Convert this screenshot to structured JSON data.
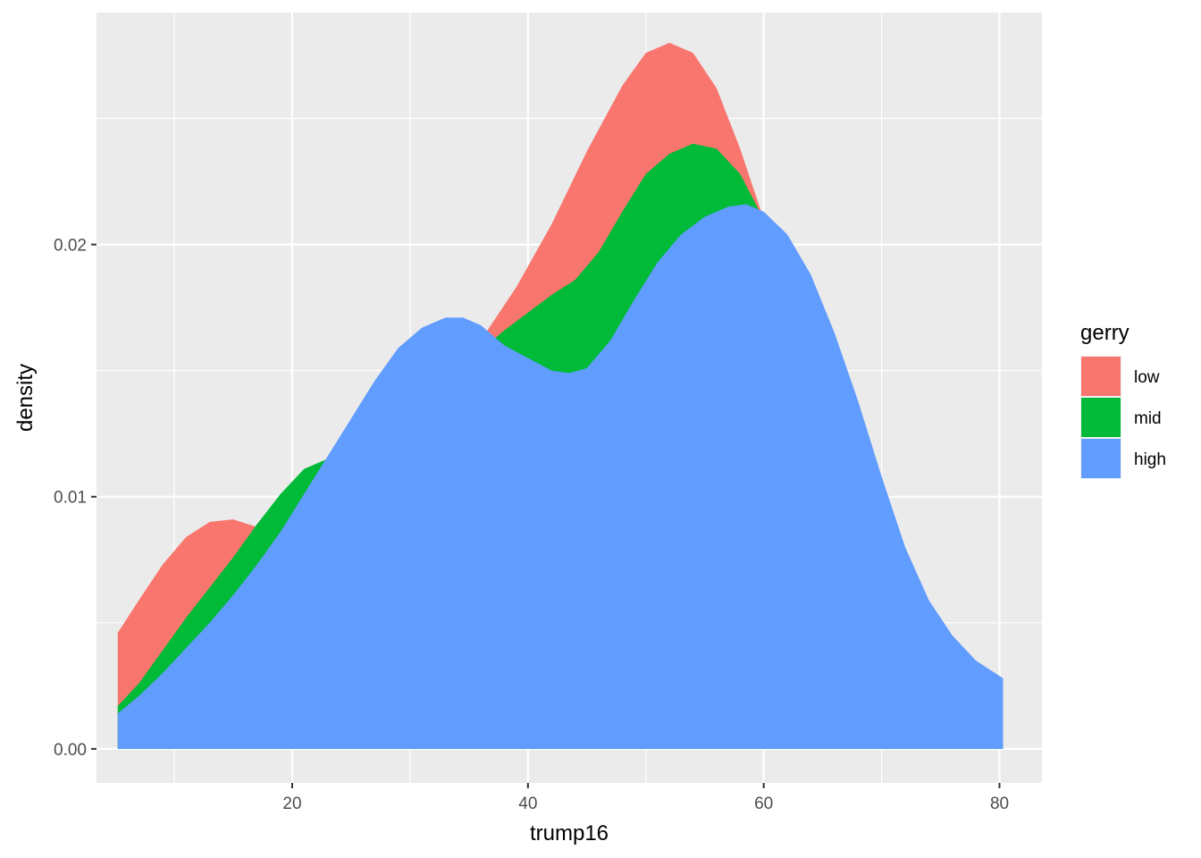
{
  "chart_data": {
    "type": "area",
    "xlabel": "trump16",
    "ylabel": "density",
    "xlim": [
      3.4,
      83.6
    ],
    "ylim": [
      -0.00135,
      0.0292
    ],
    "x_ticks": [
      20,
      40,
      60,
      80
    ],
    "x_tick_labels": [
      "20",
      "40",
      "60",
      "80"
    ],
    "y_ticks": [
      0.0,
      0.01,
      0.02
    ],
    "y_tick_labels": [
      "0.00",
      "0.01",
      "0.02"
    ],
    "x_minor_grid": [
      10,
      30,
      50,
      70
    ],
    "y_minor_grid": [
      0.005,
      0.015,
      0.025
    ],
    "grid": true,
    "legend_title": "gerry",
    "legend_position": "right",
    "series": [
      {
        "name": "low",
        "color": "#F8766D",
        "points": [
          [
            5.2,
            0.0046
          ],
          [
            7,
            0.0059
          ],
          [
            9,
            0.0073
          ],
          [
            11,
            0.0084
          ],
          [
            13,
            0.009
          ],
          [
            15,
            0.0091
          ],
          [
            17,
            0.0088
          ],
          [
            19,
            0.0083
          ],
          [
            21,
            0.0078
          ],
          [
            24,
            0.0085
          ],
          [
            27,
            0.0103
          ],
          [
            30,
            0.0125
          ],
          [
            33,
            0.0143
          ],
          [
            36,
            0.0162
          ],
          [
            39,
            0.0183
          ],
          [
            42,
            0.0208
          ],
          [
            45,
            0.0237
          ],
          [
            48,
            0.0263
          ],
          [
            50,
            0.0276
          ],
          [
            52,
            0.028
          ],
          [
            54,
            0.0276
          ],
          [
            56,
            0.0262
          ],
          [
            58,
            0.0238
          ],
          [
            60,
            0.021
          ],
          [
            62,
            0.018
          ],
          [
            64,
            0.015
          ],
          [
            66,
            0.0124
          ],
          [
            68,
            0.0098
          ],
          [
            70,
            0.0073
          ],
          [
            72,
            0.0054
          ],
          [
            74,
            0.0038
          ],
          [
            76,
            0.0026
          ],
          [
            78,
            0.0018
          ],
          [
            80.3,
            0.0013
          ]
        ]
      },
      {
        "name": "mid",
        "color": "#00BA38",
        "points": [
          [
            5.2,
            0.0017
          ],
          [
            7,
            0.0026
          ],
          [
            9,
            0.0039
          ],
          [
            11,
            0.0052
          ],
          [
            13,
            0.0064
          ],
          [
            15,
            0.0076
          ],
          [
            17,
            0.0089
          ],
          [
            19,
            0.0101
          ],
          [
            21,
            0.0111
          ],
          [
            23,
            0.0115
          ],
          [
            24.5,
            0.0116
          ],
          [
            26,
            0.0118
          ],
          [
            28,
            0.0126
          ],
          [
            30,
            0.0136
          ],
          [
            32,
            0.0145
          ],
          [
            34,
            0.0152
          ],
          [
            36,
            0.0158
          ],
          [
            38,
            0.0166
          ],
          [
            40,
            0.0173
          ],
          [
            42,
            0.018
          ],
          [
            44,
            0.0186
          ],
          [
            46,
            0.0197
          ],
          [
            48,
            0.0213
          ],
          [
            50,
            0.0228
          ],
          [
            52,
            0.0236
          ],
          [
            54,
            0.024
          ],
          [
            56,
            0.0238
          ],
          [
            58,
            0.0228
          ],
          [
            60,
            0.021
          ],
          [
            62,
            0.018
          ],
          [
            64,
            0.015
          ],
          [
            66,
            0.0124
          ],
          [
            68,
            0.0098
          ],
          [
            70,
            0.0073
          ],
          [
            72,
            0.0054
          ],
          [
            74,
            0.0038
          ],
          [
            76,
            0.0026
          ],
          [
            78,
            0.0018
          ],
          [
            80.3,
            0.0012
          ]
        ]
      },
      {
        "name": "high",
        "color": "#619CFF",
        "points": [
          [
            5.2,
            0.0014
          ],
          [
            7,
            0.0021
          ],
          [
            9,
            0.003
          ],
          [
            11,
            0.004
          ],
          [
            13,
            0.005
          ],
          [
            15,
            0.0061
          ],
          [
            17,
            0.0073
          ],
          [
            19,
            0.0086
          ],
          [
            21,
            0.0101
          ],
          [
            23,
            0.0116
          ],
          [
            25,
            0.0131
          ],
          [
            27,
            0.0146
          ],
          [
            29,
            0.0159
          ],
          [
            31,
            0.0167
          ],
          [
            33,
            0.0171
          ],
          [
            34.5,
            0.0171
          ],
          [
            36,
            0.0168
          ],
          [
            38,
            0.016
          ],
          [
            40,
            0.0155
          ],
          [
            42,
            0.015
          ],
          [
            43.5,
            0.0149
          ],
          [
            45,
            0.0151
          ],
          [
            47,
            0.0162
          ],
          [
            49,
            0.0178
          ],
          [
            51,
            0.0193
          ],
          [
            53,
            0.0204
          ],
          [
            55,
            0.0211
          ],
          [
            57,
            0.0215
          ],
          [
            58.5,
            0.0216
          ],
          [
            60,
            0.0213
          ],
          [
            62,
            0.0204
          ],
          [
            64,
            0.0188
          ],
          [
            66,
            0.0165
          ],
          [
            68,
            0.0138
          ],
          [
            70,
            0.0108
          ],
          [
            72,
            0.008
          ],
          [
            74,
            0.0059
          ],
          [
            76,
            0.0045
          ],
          [
            78,
            0.0035
          ],
          [
            80.3,
            0.0028
          ]
        ]
      }
    ]
  }
}
